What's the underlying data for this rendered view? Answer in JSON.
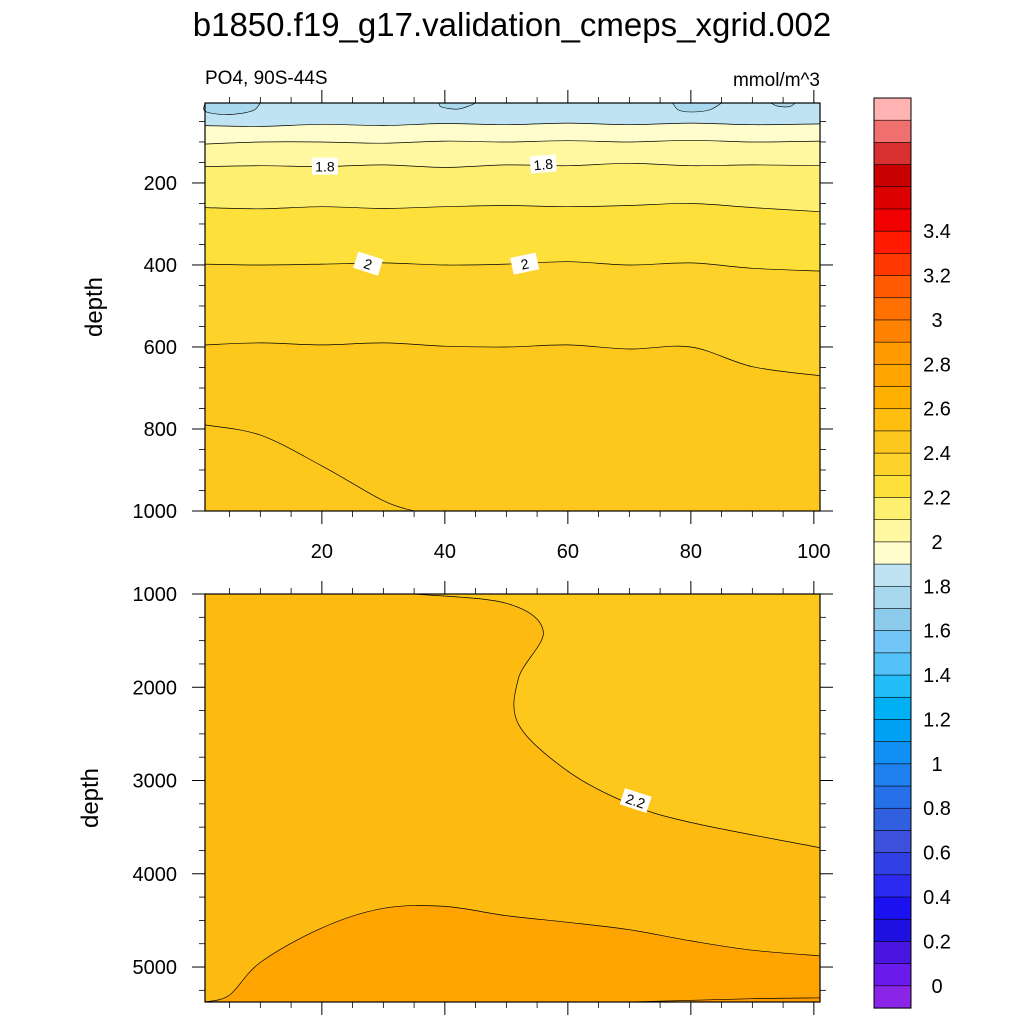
{
  "chart_data": {
    "type": "contour",
    "title": "b1850.f19_g17.validation_cmeps_xgrid.002",
    "left_subtitle": "PO4, 90S-44S",
    "right_subtitle": "mmol/m^3",
    "colorbar": {
      "labels": [
        "0",
        "0.2",
        "0.4",
        "0.6",
        "0.8",
        "1",
        "1.2",
        "1.4",
        "1.6",
        "1.8",
        "2",
        "2.2",
        "2.4",
        "2.6",
        "2.8",
        "3",
        "3.2",
        "3.4"
      ],
      "levels": [
        0,
        0.1,
        0.2,
        0.3,
        0.4,
        0.5,
        0.6,
        0.7,
        0.8,
        0.9,
        1.0,
        1.1,
        1.2,
        1.3,
        1.4,
        1.5,
        1.6,
        1.7,
        1.8,
        1.9,
        2.0,
        2.1,
        2.2,
        2.3,
        2.4,
        2.5,
        2.6,
        2.7,
        2.8,
        2.9,
        3.0,
        3.1,
        3.2,
        3.3,
        3.4,
        3.5
      ],
      "colors": [
        "#ffb3b3",
        "#f07070",
        "#d83030",
        "#c80000",
        "#dc0000",
        "#f00000",
        "#ff1a00",
        "#ff3800",
        "#ff5a00",
        "#ff7000",
        "#ff8200",
        "#ff9a00",
        "#ffa400",
        "#ffb000",
        "#ffbe10",
        "#fdc71c",
        "#fdd22a",
        "#fde03a",
        "#fdef70",
        "#fff8a0",
        "#fffdcc",
        "#bfe3f3",
        "#a7d8ee",
        "#8ccbec",
        "#72c6f5",
        "#52c2f8",
        "#20bdf8",
        "#00b0f5",
        "#00a0f5",
        "#1090f5",
        "#2080f0",
        "#2570e8",
        "#3060e0",
        "#3c50dc",
        "#3040e4",
        "#2a2af0",
        "#1a10f0",
        "#1e10e0",
        "#4a15e0",
        "#6a1aea",
        "#8a25e8"
      ]
    },
    "top_panel": {
      "xlabel": "",
      "ylabel": "depth",
      "xlim": [
        1,
        101
      ],
      "ylim": [
        1000,
        5
      ],
      "xticks": [
        "20",
        "40",
        "60",
        "80",
        "100"
      ],
      "yticks": [
        "200",
        "400",
        "600",
        "800",
        "1000"
      ],
      "contour_labels": [
        "1.8",
        "1.8",
        "2",
        "2"
      ],
      "bands": [
        {
          "level": "1.5-1.6",
          "color": "#a7d8ee"
        },
        {
          "level": "1.6-1.7",
          "color": "#bfe3f3"
        },
        {
          "level": "1.7-1.8",
          "color": "#fffdcc"
        },
        {
          "level": "1.8-1.9",
          "color": "#fff8a0"
        },
        {
          "level": "1.9-2.0",
          "color": "#fdef70"
        },
        {
          "level": "2.0-2.1",
          "color": "#fde03a"
        },
        {
          "level": "2.1-2.2",
          "color": "#fdd22a"
        },
        {
          "level": "2.2-2.3",
          "color": "#fdc71c"
        }
      ],
      "contours": [
        {
          "value": 1.6,
          "depth": [
            [
              1,
              60
            ],
            [
              10,
              62
            ],
            [
              20,
              57
            ],
            [
              30,
              60
            ],
            [
              40,
              55
            ],
            [
              50,
              58
            ],
            [
              60,
              54
            ],
            [
              70,
              58
            ],
            [
              80,
              54
            ],
            [
              90,
              58
            ],
            [
              101,
              56
            ]
          ]
        },
        {
          "value": 1.7,
          "depth": [
            [
              1,
              105
            ],
            [
              10,
              100
            ],
            [
              20,
              100
            ],
            [
              30,
              103
            ],
            [
              40,
              98
            ],
            [
              50,
              100
            ],
            [
              60,
              97
            ],
            [
              70,
              100
            ],
            [
              80,
              96
            ],
            [
              90,
              100
            ],
            [
              101,
              98
            ]
          ]
        },
        {
          "value": 1.8,
          "depth": [
            [
              1,
              160
            ],
            [
              10,
              158
            ],
            [
              20,
              160
            ],
            [
              30,
              156
            ],
            [
              40,
              162
            ],
            [
              50,
              156
            ],
            [
              60,
              158
            ],
            [
              70,
              152
            ],
            [
              80,
              158
            ],
            [
              90,
              156
            ],
            [
              101,
              158
            ]
          ]
        },
        {
          "value": 1.9,
          "depth": [
            [
              1,
              260
            ],
            [
              10,
              263
            ],
            [
              20,
              258
            ],
            [
              30,
              262
            ],
            [
              40,
              258
            ],
            [
              50,
              255
            ],
            [
              60,
              258
            ],
            [
              70,
              255
            ],
            [
              80,
              250
            ],
            [
              90,
              260
            ],
            [
              101,
              270
            ]
          ]
        },
        {
          "value": 2.0,
          "depth": [
            [
              1,
              398
            ],
            [
              10,
              400
            ],
            [
              20,
              398
            ],
            [
              30,
              395
            ],
            [
              40,
              400
            ],
            [
              50,
              398
            ],
            [
              60,
              392
            ],
            [
              70,
              400
            ],
            [
              80,
              395
            ],
            [
              90,
              408
            ],
            [
              101,
              415
            ]
          ]
        },
        {
          "value": 2.1,
          "depth": [
            [
              1,
              595
            ],
            [
              10,
              590
            ],
            [
              20,
              595
            ],
            [
              30,
              590
            ],
            [
              40,
              598
            ],
            [
              50,
              600
            ],
            [
              60,
              595
            ],
            [
              70,
              605
            ],
            [
              80,
              600
            ],
            [
              90,
              648
            ],
            [
              101,
              670
            ]
          ]
        },
        {
          "value": 2.2,
          "depth": [
            [
              1,
              790
            ],
            [
              10,
              815
            ],
            [
              20,
              890
            ],
            [
              30,
              975
            ],
            [
              35,
              1000
            ]
          ]
        }
      ]
    },
    "bottom_panel": {
      "xlabel": "",
      "ylabel": "depth",
      "xlim": [
        1,
        101
      ],
      "ylim": [
        5375,
        1000
      ],
      "yticks": [
        "1000",
        "2000",
        "3000",
        "4000",
        "5000"
      ],
      "contour_labels": [
        "2.2"
      ],
      "bands": [
        {
          "level": "2.2-2.3",
          "color": "#fdc71c"
        },
        {
          "level": "2.3-2.4",
          "color": "#fdbb12"
        },
        {
          "level": "2.4-2.5",
          "color": "#ffa400"
        }
      ],
      "contours": [
        {
          "value": 2.2,
          "depth": [
            [
              35,
              1000
            ],
            [
              50,
              1100
            ],
            [
              56,
              1400
            ],
            [
              52,
              1900
            ],
            [
              52,
              2400
            ],
            [
              60,
              2900
            ],
            [
              70,
              3250
            ],
            [
              80,
              3450
            ],
            [
              101,
              3720
            ]
          ]
        },
        {
          "value": 2.3,
          "depth": [
            [
              1,
              5375
            ],
            [
              5,
              5300
            ],
            [
              10,
              4950
            ],
            [
              20,
              4580
            ],
            [
              30,
              4370
            ],
            [
              40,
              4350
            ],
            [
              50,
              4450
            ],
            [
              60,
              4520
            ],
            [
              70,
              4600
            ],
            [
              80,
              4720
            ],
            [
              90,
              4820
            ],
            [
              101,
              4880
            ]
          ]
        },
        {
          "value": 2.3,
          "depth": [
            [
              70,
              5375
            ],
            [
              90,
              5340
            ],
            [
              101,
              5330
            ]
          ]
        }
      ]
    }
  }
}
